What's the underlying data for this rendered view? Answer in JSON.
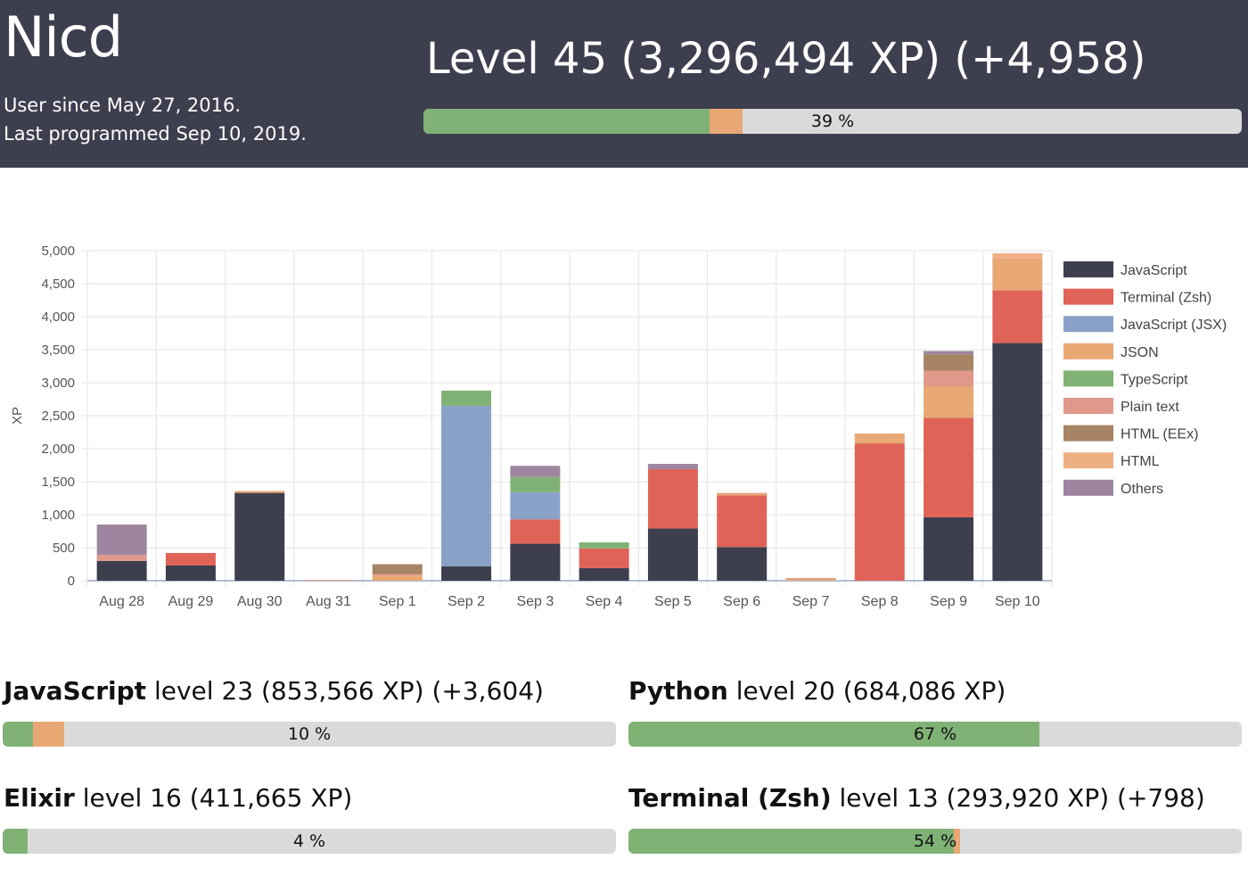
{
  "header": {
    "user_name": "Nicd",
    "since": "User since May 27, 2016.",
    "last_programmed": "Last programmed Sep 10, 2019.",
    "level_title": "Level 45 (3,296,494 XP) (+4,958)",
    "progress": {
      "total": 0.39,
      "gained": 0.04,
      "label": "39 %"
    }
  },
  "colors": {
    "header_bg": "#3d3e4e",
    "progress_green": "#80b276",
    "progress_orange": "#e8a874",
    "progress_track": "#dadada"
  },
  "chart_data": {
    "type": "bar",
    "stacked": true,
    "categories": [
      "Aug 28",
      "Aug 29",
      "Aug 30",
      "Aug 31",
      "Sep 1",
      "Sep 2",
      "Sep 3",
      "Sep 4",
      "Sep 5",
      "Sep 6",
      "Sep 7",
      "Sep 8",
      "Sep 9",
      "Sep 10"
    ],
    "ylabel": "XP",
    "ylim": [
      0,
      5000
    ],
    "yticks": [
      0,
      500,
      1000,
      1500,
      2000,
      2500,
      3000,
      3500,
      4000,
      4500,
      5000
    ],
    "ytick_labels": [
      "0",
      "500",
      "1,000",
      "1,500",
      "2,000",
      "2,500",
      "3,000",
      "3,500",
      "4,000",
      "4,500",
      "5,000"
    ],
    "grid": true,
    "legend_position": "right",
    "series": [
      {
        "name": "JavaScript",
        "color": "#3d3e4e",
        "values": [
          300,
          230,
          1330,
          0,
          0,
          220,
          560,
          190,
          790,
          510,
          0,
          0,
          960,
          3600
        ]
      },
      {
        "name": "Terminal (Zsh)",
        "color": "#df6457",
        "values": [
          0,
          190,
          0,
          0,
          0,
          0,
          370,
          300,
          900,
          780,
          0,
          2080,
          1510,
          800
        ]
      },
      {
        "name": "JavaScript (JSX)",
        "color": "#8aa2c8",
        "values": [
          0,
          0,
          0,
          0,
          0,
          2430,
          410,
          0,
          0,
          0,
          0,
          0,
          0,
          0
        ]
      },
      {
        "name": "JSON",
        "color": "#e8a874",
        "values": [
          0,
          0,
          30,
          0,
          80,
          0,
          0,
          0,
          0,
          30,
          20,
          150,
          470,
          480
        ]
      },
      {
        "name": "TypeScript",
        "color": "#80b276",
        "values": [
          0,
          0,
          0,
          0,
          0,
          230,
          230,
          90,
          0,
          0,
          0,
          0,
          0,
          0
        ]
      },
      {
        "name": "Plain text",
        "color": "#e0988a",
        "values": [
          90,
          0,
          0,
          10,
          20,
          0,
          0,
          0,
          0,
          10,
          20,
          0,
          240,
          0
        ]
      },
      {
        "name": "HTML (EEx)",
        "color": "#a68464",
        "values": [
          0,
          0,
          0,
          0,
          150,
          0,
          0,
          0,
          0,
          0,
          0,
          0,
          250,
          0
        ]
      },
      {
        "name": "HTML",
        "color": "#eeb083",
        "values": [
          0,
          0,
          0,
          0,
          0,
          0,
          0,
          0,
          0,
          0,
          0,
          0,
          0,
          80
        ]
      },
      {
        "name": "Others",
        "color": "#9e86a0",
        "values": [
          460,
          0,
          0,
          0,
          0,
          0,
          170,
          0,
          80,
          0,
          0,
          0,
          50,
          0
        ]
      }
    ]
  },
  "languages": [
    {
      "name": "JavaScript",
      "detail": "level 23 (853,566 XP) (+3,604)",
      "progress": 0.05,
      "gained": 0.05,
      "label": "10 %"
    },
    {
      "name": "Python",
      "detail": "level 20 (684,086 XP)",
      "progress": 0.67,
      "gained": 0,
      "label": "67 %"
    },
    {
      "name": "Elixir",
      "detail": "level 16 (411,665 XP)",
      "progress": 0.04,
      "gained": 0,
      "label": "4 %"
    },
    {
      "name": "Terminal (Zsh)",
      "detail": "level 13 (293,920 XP) (+798)",
      "progress": 0.53,
      "gained": 0.01,
      "label": "54 %"
    }
  ]
}
